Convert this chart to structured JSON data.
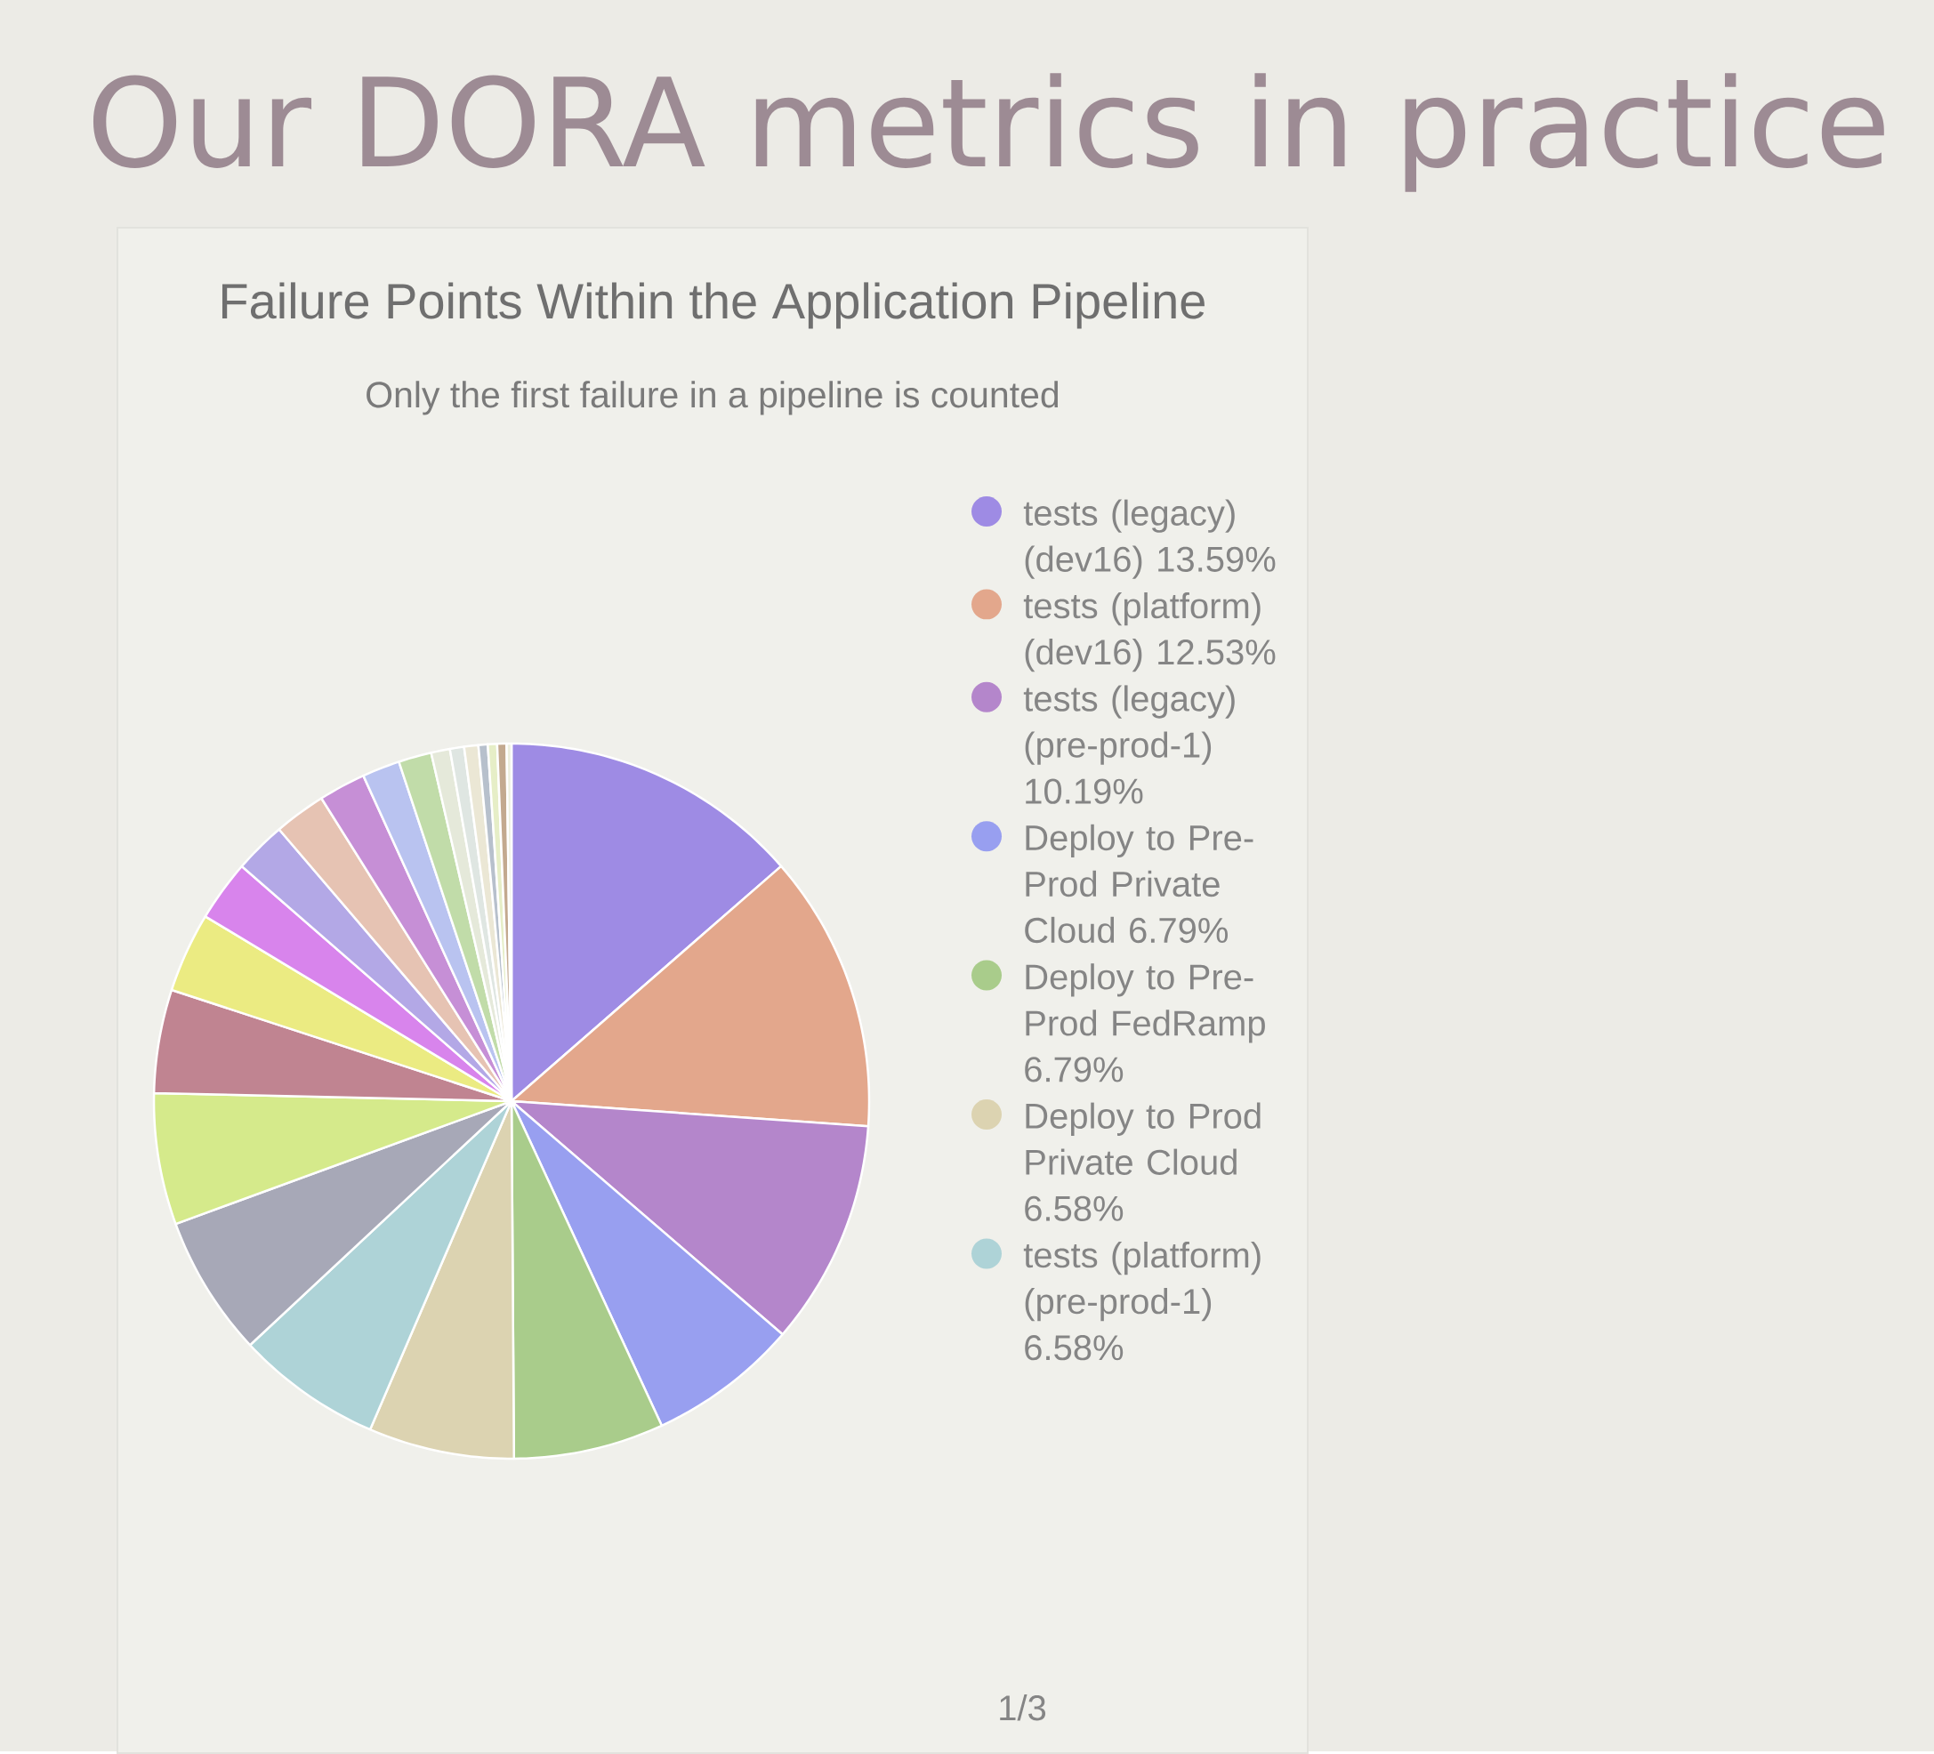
{
  "chart_data": {
    "type": "pie",
    "title": "Failure Points Within the Application Pipeline",
    "subtitle": "Only the first failure in a pipeline is counted",
    "annotations": [
      "Our DORA metrics in practice",
      "1/3"
    ],
    "categories": [
      "tests (legacy) (dev16)",
      "tests (platform) (dev16)",
      "tests (legacy) (pre-prod-1)",
      "Deploy to Pre-Prod Private Cloud",
      "Deploy to Pre-Prod FedRamp",
      "Deploy to Prod Private Cloud",
      "tests (platform) (pre-prod-1)",
      null,
      null,
      null,
      null,
      null,
      null,
      null,
      null,
      null,
      null,
      null,
      null,
      null,
      null,
      null,
      null,
      null
    ],
    "values": [
      13.59,
      12.53,
      10.19,
      6.79,
      6.79,
      6.58,
      6.58,
      6.37,
      5.94,
      4.67,
      3.61,
      2.76,
      2.34,
      2.34,
      2.12,
      1.7,
      1.49,
      0.85,
      0.64,
      0.64,
      0.42,
      0.42,
      0.42,
      0.22
    ],
    "value_labels": [
      "13.59%",
      "12.53%",
      "10.19%",
      "6.79%",
      "6.79%",
      "6.58%",
      "6.58%",
      null,
      null,
      null,
      null,
      null,
      null,
      null,
      null,
      null,
      null,
      null,
      null,
      null,
      null,
      null,
      null,
      null
    ],
    "colors": [
      "#9e8be4",
      "#e3a78c",
      "#b486cb",
      "#989ff0",
      "#a9cc8b",
      "#dcd3b1",
      "#aed3d7",
      "#a7a8b7",
      "#d5ea8b",
      "#c08491",
      "#ebeb82",
      "#d884ec",
      "#b3a8e6",
      "#e6c3b3",
      "#c68fd6",
      "#b9c3f0",
      "#c1dca9",
      "#e5e9da",
      "#dfe6e2",
      "#ebe7d5",
      "#b7c0cc",
      "#e6eec7",
      "#c3a98f",
      "#edefdf"
    ],
    "legend": "right"
  }
}
